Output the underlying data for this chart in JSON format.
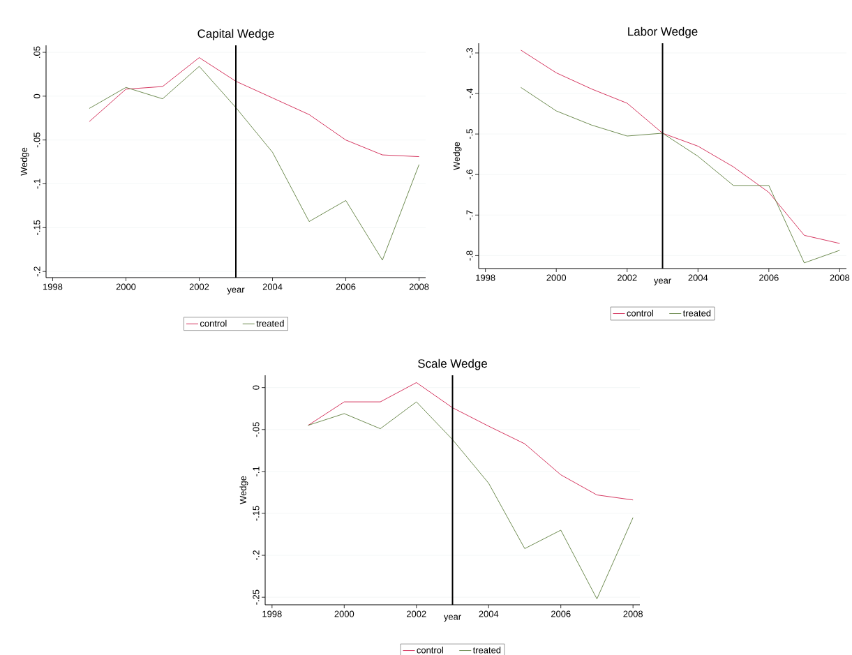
{
  "chart_data": [
    {
      "type": "line",
      "title": "Capital Wedge",
      "xlabel": "year",
      "ylabel": "Wedge",
      "x": [
        1999,
        2000,
        2001,
        2002,
        2003,
        2004,
        2005,
        2006,
        2007,
        2008
      ],
      "series": [
        {
          "name": "control",
          "color": "#d0204e",
          "values": [
            -0.029,
            0.008,
            0.011,
            0.044,
            0.017,
            -0.002,
            -0.021,
            -0.05,
            -0.067,
            -0.069
          ]
        },
        {
          "name": "treated",
          "color": "#5e7e3e",
          "values": [
            -0.014,
            0.01,
            -0.003,
            0.034,
            -0.013,
            -0.064,
            -0.143,
            -0.119,
            -0.187,
            -0.078
          ]
        }
      ],
      "xlim": [
        1997.82,
        2008.18
      ],
      "ylim": [
        -0.207,
        0.058
      ],
      "xticks": [
        1998,
        2000,
        2002,
        2004,
        2006,
        2008
      ],
      "yticks": [
        {
          "value": -0.2,
          "label": "-.2"
        },
        {
          "value": -0.15,
          "label": "-.15"
        },
        {
          "value": -0.1,
          "label": "-.1"
        },
        {
          "value": -0.05,
          "label": "-.05"
        },
        0,
        {
          "value": 0.05,
          "label": ".05"
        }
      ],
      "ref_lines": [
        {
          "axis": "x",
          "value": 2003,
          "color": "#000000"
        }
      ],
      "grid": "y",
      "legend": "bottom"
    },
    {
      "type": "line",
      "title": "Labor Wedge",
      "xlabel": "year",
      "ylabel": "Wedge",
      "x": [
        1999,
        2000,
        2001,
        2002,
        2003,
        2004,
        2005,
        2006,
        2007,
        2008
      ],
      "series": [
        {
          "name": "control",
          "color": "#d0204e",
          "values": [
            -0.293,
            -0.349,
            -0.389,
            -0.424,
            -0.498,
            -0.53,
            -0.581,
            -0.644,
            -0.75,
            -0.77
          ]
        },
        {
          "name": "treated",
          "color": "#5e7e3e",
          "values": [
            -0.385,
            -0.443,
            -0.478,
            -0.505,
            -0.498,
            -0.555,
            -0.627,
            -0.627,
            -0.818,
            -0.787
          ]
        }
      ],
      "xlim": [
        1997.81,
        2008.19
      ],
      "ylim": [
        -0.832,
        -0.276
      ],
      "xticks": [
        1998,
        2000,
        2002,
        2004,
        2006,
        2008
      ],
      "yticks": [
        {
          "value": -0.8,
          "label": "-.8"
        },
        {
          "value": -0.7,
          "label": "-.7"
        },
        {
          "value": -0.6,
          "label": "-.6"
        },
        {
          "value": -0.5,
          "label": "-.5"
        },
        {
          "value": -0.4,
          "label": "-.4"
        },
        {
          "value": -0.3,
          "label": "-.3"
        }
      ],
      "ref_lines": [
        {
          "axis": "x",
          "value": 2003,
          "color": "#000000"
        }
      ],
      "grid": "y",
      "legend": "bottom"
    },
    {
      "type": "line",
      "title": "Scale Wedge",
      "xlabel": "year",
      "ylabel": "Wedge",
      "x": [
        1999,
        2000,
        2001,
        2002,
        2003,
        2004,
        2005,
        2006,
        2007,
        2008
      ],
      "series": [
        {
          "name": "control",
          "color": "#d0204e",
          "values": [
            -0.045,
            -0.017,
            -0.017,
            0.006,
            -0.024,
            -0.046,
            -0.067,
            -0.104,
            -0.128,
            -0.134
          ]
        },
        {
          "name": "treated",
          "color": "#5e7e3e",
          "values": [
            -0.045,
            -0.031,
            -0.049,
            -0.017,
            -0.062,
            -0.114,
            -0.192,
            -0.17,
            -0.252,
            -0.155
          ]
        }
      ],
      "xlim": [
        1997.81,
        2008.19
      ],
      "ylim": [
        -0.259,
        0.0147
      ],
      "xticks": [
        1998,
        2000,
        2002,
        2004,
        2006,
        2008
      ],
      "yticks": [
        {
          "value": -0.25,
          "label": "-.25"
        },
        {
          "value": -0.2,
          "label": "-.2"
        },
        {
          "value": -0.15,
          "label": "-.15"
        },
        {
          "value": -0.1,
          "label": "-.1"
        },
        {
          "value": -0.05,
          "label": "-.05"
        },
        0
      ],
      "ref_lines": [
        {
          "axis": "x",
          "value": 2003,
          "color": "#000000"
        }
      ],
      "grid": "y",
      "legend": "bottom"
    }
  ]
}
